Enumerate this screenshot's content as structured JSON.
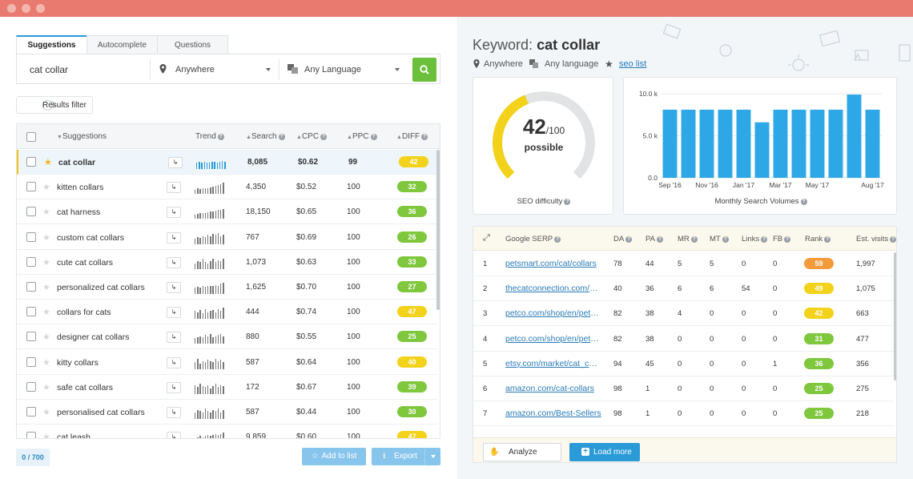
{
  "colors": {
    "green": "#7fc73d",
    "yellow": "#f3d21c",
    "orange": "#f39a3a",
    "blue": "#2a9bd7",
    "bar": "#2ea7e6"
  },
  "tabs": [
    {
      "label": "Suggestions",
      "active": true
    },
    {
      "label": "Autocomplete",
      "active": false
    },
    {
      "label": "Questions",
      "active": false
    }
  ],
  "search": {
    "keyword": "cat collar",
    "location": "Anywhere",
    "language": "Any Language"
  },
  "filter": {
    "label": "Results filter"
  },
  "table": {
    "headers": {
      "suggestions": "Suggestions",
      "trend": "Trend",
      "search": "Search",
      "cpc": "CPC",
      "ppc": "PPC",
      "diff": "DIFF"
    },
    "rows": [
      {
        "keyword": "cat collar",
        "search": "8,085",
        "cpc": "$0.62",
        "ppc": "99",
        "diff": "42",
        "diffColor": "yellow",
        "starred": true,
        "selected": true,
        "trend": [
          0.6,
          0.65,
          0.6,
          0.62,
          0.6,
          0.55,
          0.62,
          0.62,
          0.6,
          0.62,
          0.7,
          0.62
        ]
      },
      {
        "keyword": "kitten collars",
        "search": "4,350",
        "cpc": "$0.52",
        "ppc": "100",
        "diff": "32",
        "diffColor": "green",
        "trend": [
          0.4,
          0.5,
          0.45,
          0.5,
          0.55,
          0.5,
          0.6,
          0.65,
          0.7,
          0.8,
          0.9,
          1.0
        ]
      },
      {
        "keyword": "cat harness",
        "search": "18,150",
        "cpc": "$0.65",
        "ppc": "100",
        "diff": "36",
        "diffColor": "green",
        "trend": [
          0.4,
          0.45,
          0.5,
          0.5,
          0.55,
          0.6,
          0.65,
          0.7,
          0.75,
          0.8,
          0.85,
          0.9
        ]
      },
      {
        "keyword": "custom cat collars",
        "search": "767",
        "cpc": "$0.69",
        "ppc": "100",
        "diff": "26",
        "diffColor": "green",
        "trend": [
          0.5,
          0.6,
          0.55,
          0.7,
          0.6,
          0.8,
          0.7,
          0.9,
          0.8,
          1.0,
          0.7,
          0.8
        ]
      },
      {
        "keyword": "cute cat collars",
        "search": "1,073",
        "cpc": "$0.63",
        "ppc": "100",
        "diff": "33",
        "diffColor": "green",
        "trend": [
          0.5,
          0.7,
          0.6,
          0.9,
          0.6,
          0.5,
          0.7,
          0.9,
          0.6,
          0.8,
          0.7,
          0.9
        ]
      },
      {
        "keyword": "personalized cat collars",
        "search": "1,625",
        "cpc": "$0.70",
        "ppc": "100",
        "diff": "27",
        "diffColor": "green",
        "trend": [
          0.6,
          0.65,
          0.55,
          0.7,
          0.65,
          0.7,
          0.75,
          0.7,
          0.8,
          0.75,
          0.9,
          1.0
        ]
      },
      {
        "keyword": "collars for cats",
        "search": "444",
        "cpc": "$0.74",
        "ppc": "100",
        "diff": "47",
        "diffColor": "yellow",
        "trend": [
          0.7,
          0.6,
          0.8,
          0.5,
          0.9,
          0.6,
          0.7,
          0.8,
          0.6,
          0.9,
          0.7,
          1.0
        ]
      },
      {
        "keyword": "designer cat collars",
        "search": "880",
        "cpc": "$0.55",
        "ppc": "100",
        "diff": "25",
        "diffColor": "green",
        "trend": [
          0.5,
          0.6,
          0.7,
          0.6,
          0.8,
          0.7,
          0.9,
          0.6,
          0.7,
          0.8,
          0.9,
          0.7
        ]
      },
      {
        "keyword": "kitty collars",
        "search": "587",
        "cpc": "$0.64",
        "ppc": "100",
        "diff": "40",
        "diffColor": "yellow",
        "trend": [
          0.6,
          0.9,
          0.5,
          0.7,
          0.6,
          0.8,
          0.7,
          0.6,
          0.9,
          0.7,
          0.8,
          0.6
        ]
      },
      {
        "keyword": "safe cat collars",
        "search": "172",
        "cpc": "$0.67",
        "ppc": "100",
        "diff": "39",
        "diffColor": "green",
        "trend": [
          0.8,
          0.6,
          0.9,
          0.7,
          0.6,
          0.8,
          0.5,
          0.7,
          0.9,
          0.6,
          0.8,
          0.7
        ]
      },
      {
        "keyword": "personalised cat collars",
        "search": "587",
        "cpc": "$0.44",
        "ppc": "100",
        "diff": "30",
        "diffColor": "green",
        "trend": [
          0.6,
          0.8,
          0.7,
          0.6,
          0.9,
          0.7,
          0.6,
          0.8,
          0.7,
          0.9,
          0.6,
          0.8
        ]
      },
      {
        "keyword": "cat leash",
        "search": "9,859",
        "cpc": "$0.60",
        "ppc": "100",
        "diff": "47",
        "diffColor": "yellow",
        "trend": [
          0.5,
          0.6,
          0.7,
          0.6,
          0.7,
          0.8,
          0.7,
          0.8,
          0.9,
          0.8,
          0.9,
          1.0
        ]
      }
    ]
  },
  "footer": {
    "counter": "0 / 700",
    "add_label": "Add to list",
    "export_label": "Export"
  },
  "right": {
    "title_prefix": "Keyword:",
    "keyword": "cat collar",
    "location": "Anywhere",
    "language": "Any language",
    "seo_list": "seo list",
    "gauge": {
      "value": "42",
      "max": "/100",
      "label": "possible",
      "caption": "SEO difficulty",
      "fraction": 0.42
    },
    "volumes_caption": "Monthly Search Volumes",
    "serp": {
      "headers": {
        "serp": "Google SERP",
        "da": "DA",
        "pa": "PA",
        "mr": "MR",
        "mt": "MT",
        "links": "Links",
        "fb": "FB",
        "rank": "Rank",
        "visits": "Est. visits"
      },
      "rows": [
        {
          "pos": "1",
          "url": "petsmart.com/cat/collars",
          "da": "78",
          "pa": "44",
          "mr": "5",
          "mt": "5",
          "links": "0",
          "fb": "0",
          "rank": "59",
          "rankColor": "orange",
          "visits": "1,997"
        },
        {
          "pos": "2",
          "url": "thecatconnection.com/collars",
          "da": "40",
          "pa": "36",
          "mr": "6",
          "mt": "6",
          "links": "54",
          "fb": "0",
          "rank": "49",
          "rankColor": "yellow",
          "visits": "1,075"
        },
        {
          "pos": "3",
          "url": "petco.com/shop/en/petcostore",
          "da": "82",
          "pa": "38",
          "mr": "4",
          "mt": "0",
          "links": "0",
          "fb": "0",
          "rank": "42",
          "rankColor": "yellow",
          "visits": "663"
        },
        {
          "pos": "4",
          "url": "petco.com/shop/en/petcostore",
          "da": "82",
          "pa": "38",
          "mr": "0",
          "mt": "0",
          "links": "0",
          "fb": "0",
          "rank": "31",
          "rankColor": "green",
          "visits": "477"
        },
        {
          "pos": "5",
          "url": "etsy.com/market/cat_collar",
          "da": "94",
          "pa": "45",
          "mr": "0",
          "mt": "0",
          "links": "0",
          "fb": "1",
          "rank": "36",
          "rankColor": "green",
          "visits": "356"
        },
        {
          "pos": "6",
          "url": "amazon.com/cat-collars",
          "da": "98",
          "pa": "1",
          "mr": "0",
          "mt": "0",
          "links": "0",
          "fb": "0",
          "rank": "25",
          "rankColor": "green",
          "visits": "275"
        },
        {
          "pos": "7",
          "url": "amazon.com/Best-Sellers",
          "da": "98",
          "pa": "1",
          "mr": "0",
          "mt": "0",
          "links": "0",
          "fb": "0",
          "rank": "25",
          "rankColor": "green",
          "visits": "218"
        }
      ],
      "analyze_label": "Analyze SERP",
      "load_label": "Load more"
    }
  },
  "chart_data": {
    "type": "bar",
    "categories": [
      "Sep '16",
      "Oct '16",
      "Nov '16",
      "Dec '16",
      "Jan '17",
      "Feb '17",
      "Mar '17",
      "Apr '17",
      "May '17",
      "Jun '17",
      "Jul '17",
      "Aug '17"
    ],
    "tick_labels": [
      "Sep '16",
      "Nov '16",
      "Jan '17",
      "Mar '17",
      "May '17",
      "Aug '17"
    ],
    "values": [
      8100,
      8100,
      8100,
      8100,
      8100,
      6600,
      8100,
      8100,
      8100,
      8100,
      9900,
      8100
    ],
    "yticks": [
      "10.0 k",
      "5.0 k",
      "0.0"
    ],
    "ylim": [
      0,
      10000
    ],
    "xlabel": "Monthly Search Volumes",
    "ylabel": "",
    "title": ""
  }
}
